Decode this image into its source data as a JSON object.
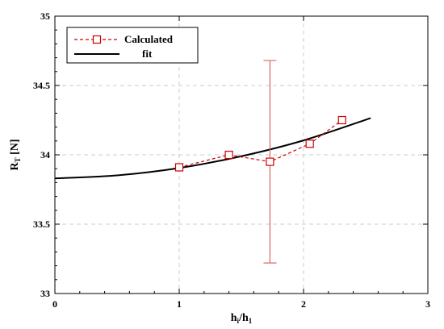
{
  "chart_data": {
    "type": "line",
    "xlim": [
      0,
      3
    ],
    "ylim": [
      33,
      35
    ],
    "x_ticks": [
      "0",
      "1",
      "2",
      "3"
    ],
    "y_ticks": [
      "33",
      "33.5",
      "34",
      "34.5",
      "35"
    ],
    "xlabel": {
      "main": "h",
      "sub1": "i",
      "sep": "/h",
      "sub2": "1"
    },
    "ylabel": {
      "main": "R",
      "sub": "T",
      "unit": " [N]"
    },
    "grid": true,
    "legend_position": "top-left",
    "series": [
      {
        "name": "Calculated",
        "style": "dashed-square-markers",
        "color": "#cc0000",
        "x": [
          1.0,
          1.4,
          1.73,
          2.05,
          2.31
        ],
        "y": [
          33.91,
          34.0,
          33.95,
          34.08,
          34.25
        ],
        "error_bar": {
          "x": 1.73,
          "low": 33.22,
          "high": 34.68
        }
      },
      {
        "name": "fit",
        "style": "solid",
        "color": "#000000",
        "x": [
          0,
          0.5,
          1.0,
          1.5,
          2.0,
          2.54
        ],
        "y": [
          33.83,
          33.852,
          33.905,
          33.99,
          34.104,
          34.265
        ]
      }
    ]
  }
}
